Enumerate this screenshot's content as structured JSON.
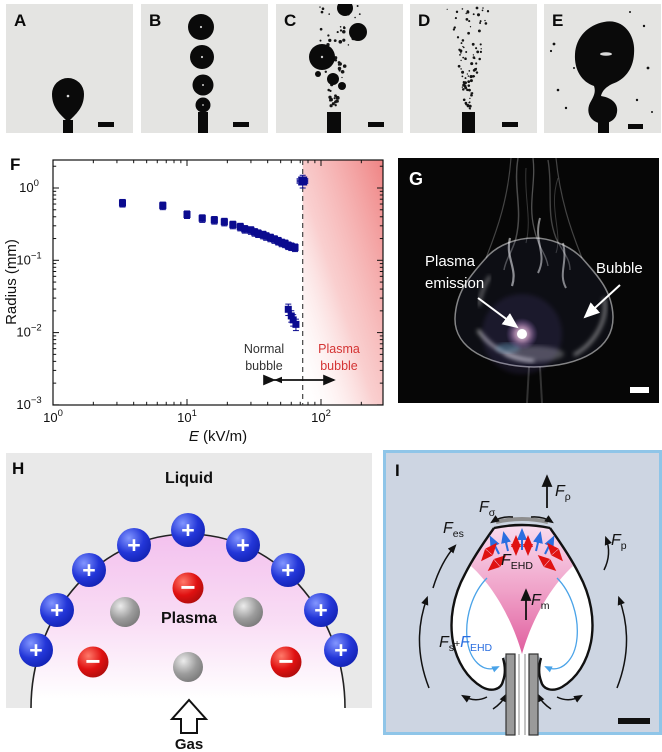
{
  "colors": {
    "photo_bg": "#e4e4e2",
    "ink": "#0a0a0a",
    "navy": "#0b0b8f",
    "plasma_red": "#d43333",
    "arrow_red": "#e01212",
    "arrow_blue": "#2a6ee0",
    "panel_i_bg": "#cdd5e2",
    "panel_i_border": "#8fc5e8",
    "panel_h_bg": "#e9e9e9",
    "dome_pink": "#f3c1ee"
  },
  "panels": {
    "a": {
      "label": "A"
    },
    "b": {
      "label": "B"
    },
    "c": {
      "label": "C"
    },
    "d": {
      "label": "D"
    },
    "e": {
      "label": "E"
    },
    "f": {
      "label": "F"
    },
    "g": {
      "label": "G"
    },
    "h": {
      "label": "H"
    },
    "i": {
      "label": "I"
    }
  },
  "chart_data": {
    "type": "scatter",
    "xlabel_var": "E",
    "xlabel_rest": " (kV/m)",
    "ylabel": "Radius (mm)",
    "xscale": "log",
    "yscale": "log",
    "xlim": [
      1,
      290
    ],
    "ylim": [
      0.001,
      2.4
    ],
    "marker_color": "#0b0b8f",
    "x_tick_labels": [
      {
        "base": "10",
        "exp": "0",
        "value": 1
      },
      {
        "base": "10",
        "exp": "1",
        "value": 10
      },
      {
        "base": "10",
        "exp": "2",
        "value": 100
      }
    ],
    "y_tick_labels": [
      {
        "base": "10",
        "exp": "0",
        "value": 1
      },
      {
        "base": "10",
        "exp": "−1",
        "value": 0.1
      },
      {
        "base": "10",
        "exp": "−2",
        "value": 0.01
      },
      {
        "base": "10",
        "exp": "−3",
        "value": 0.001
      }
    ],
    "series": [
      {
        "name": "normal-bubble-radius",
        "x": [
          3.3,
          6.6,
          10,
          13,
          16,
          19,
          22,
          25,
          27,
          30,
          32,
          34,
          37,
          39,
          42,
          45,
          48,
          51,
          54,
          57,
          60,
          64
        ],
        "y": [
          0.62,
          0.57,
          0.43,
          0.38,
          0.36,
          0.34,
          0.31,
          0.29,
          0.27,
          0.26,
          0.245,
          0.235,
          0.225,
          0.215,
          0.205,
          0.195,
          0.185,
          0.175,
          0.17,
          0.16,
          0.155,
          0.15
        ],
        "yerr_frac": 0.12,
        "xerr_frac": 0.05,
        "marker_size": 7
      },
      {
        "name": "microbubble-transition",
        "x": [
          57,
          60,
          62,
          65
        ],
        "y": [
          0.021,
          0.017,
          0.015,
          0.013
        ],
        "yerr_frac": 0.18,
        "xerr_frac": 0.04,
        "marker_size": 7
      },
      {
        "name": "plasma-bubble",
        "x": [
          73
        ],
        "y": [
          1.25
        ],
        "yerr_frac": 0.2,
        "xerr_frac": 0.09,
        "marker_size": 9
      }
    ],
    "threshold_x": 73,
    "annotations": {
      "normal_line1": "Normal",
      "normal_line2": "bubble",
      "plasma_line1": "Plasma",
      "plasma_line2": "bubble"
    }
  },
  "panel_g": {
    "label_line1": "Plasma",
    "label_line2": "emission",
    "bubble_label": "Bubble"
  },
  "panel_h": {
    "liquid": "Liquid",
    "plasma": "Plasma",
    "gas": "Gas",
    "plus": "+",
    "minus": "−"
  },
  "panel_i": {
    "f_rho": {
      "f": "F",
      "sub": "ρ"
    },
    "f_sigma": {
      "f": "F",
      "sub": "σ"
    },
    "f_es": {
      "f": "F",
      "sub": "es"
    },
    "f_ehd_top": {
      "f": "F",
      "sub": "EHD"
    },
    "f_p": {
      "f": "F",
      "sub": "p"
    },
    "f_m": {
      "f": "F",
      "sub": "m"
    },
    "f_s": {
      "f": "F",
      "sub": "s"
    },
    "plus": "+",
    "f_ehd_bottom": {
      "f": "F",
      "sub": "EHD"
    }
  }
}
